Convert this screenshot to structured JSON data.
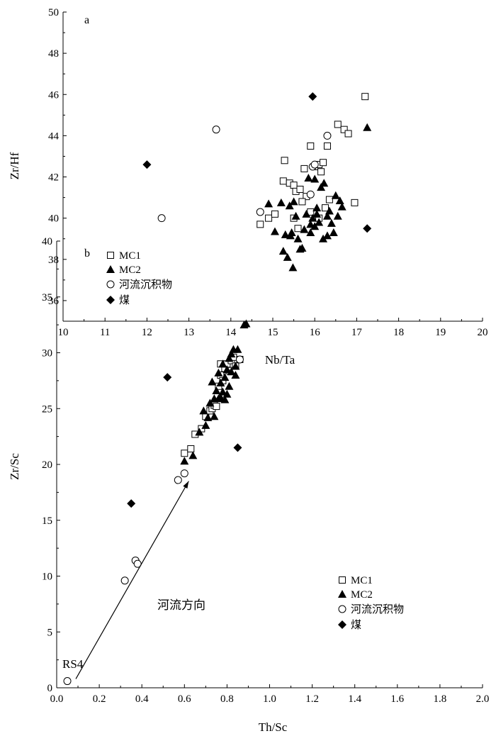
{
  "chart_data": [
    {
      "type": "scatter",
      "panel_label": "a",
      "xlabel": "Nb/Ta",
      "ylabel": "Zr/Hf",
      "xlim": [
        10,
        20
      ],
      "ylim": [
        35,
        50
      ],
      "x_ticks": [
        10,
        11,
        12,
        13,
        14,
        15,
        16,
        17,
        18,
        19,
        20
      ],
      "y_ticks": [
        36,
        38,
        40,
        42,
        44,
        46,
        48,
        50
      ],
      "x_tick_labels": [
        "10",
        "11",
        "12",
        "13",
        "14",
        "15",
        "16",
        "17",
        "18",
        "19",
        "20"
      ],
      "y_tick_labels": [
        "36",
        "38",
        "40",
        "42",
        "44",
        "46",
        "48",
        "50"
      ],
      "legend_position": "bottom-left",
      "series": [
        {
          "name": "MC1",
          "marker": "square-open",
          "points": [
            [
              14.7,
              39.7
            ],
            [
              14.9,
              40.0
            ],
            [
              15.05,
              40.2
            ],
            [
              15.25,
              41.8
            ],
            [
              15.28,
              42.8
            ],
            [
              15.4,
              41.7
            ],
            [
              15.5,
              41.6
            ],
            [
              15.55,
              41.3
            ],
            [
              15.65,
              41.4
            ],
            [
              15.75,
              42.4
            ],
            [
              15.8,
              41.05
            ],
            [
              15.9,
              43.5
            ],
            [
              16.0,
              42.5
            ],
            [
              16.1,
              42.6
            ],
            [
              16.15,
              42.25
            ],
            [
              16.2,
              42.7
            ],
            [
              16.3,
              43.5
            ],
            [
              16.35,
              40.9
            ],
            [
              16.55,
              44.55
            ],
            [
              16.7,
              44.3
            ],
            [
              16.8,
              44.1
            ],
            [
              16.95,
              40.75
            ],
            [
              17.2,
              45.9
            ],
            [
              15.5,
              40.0
            ],
            [
              15.6,
              39.5
            ],
            [
              15.9,
              40.3
            ],
            [
              16.1,
              40.0
            ],
            [
              16.25,
              40.5
            ],
            [
              15.7,
              40.8
            ]
          ]
        },
        {
          "name": "MC2",
          "marker": "triangle-filled",
          "points": [
            [
              14.9,
              40.7
            ],
            [
              15.05,
              39.35
            ],
            [
              15.2,
              40.75
            ],
            [
              15.25,
              38.4
            ],
            [
              15.3,
              39.2
            ],
            [
              15.35,
              38.1
            ],
            [
              15.4,
              40.6
            ],
            [
              15.42,
              39.15
            ],
            [
              15.45,
              39.3
            ],
            [
              15.5,
              40.8
            ],
            [
              15.48,
              37.6
            ],
            [
              15.55,
              40.1
            ],
            [
              15.6,
              39.0
            ],
            [
              15.65,
              38.5
            ],
            [
              15.7,
              38.55
            ],
            [
              15.75,
              39.45
            ],
            [
              15.8,
              40.2
            ],
            [
              15.85,
              41.95
            ],
            [
              15.9,
              39.7
            ],
            [
              15.95,
              40.0
            ],
            [
              16.0,
              41.9
            ],
            [
              16.0,
              39.6
            ],
            [
              16.05,
              40.5
            ],
            [
              16.1,
              39.8
            ],
            [
              16.15,
              41.5
            ],
            [
              16.2,
              39.0
            ],
            [
              16.22,
              41.7
            ],
            [
              16.3,
              39.15
            ],
            [
              16.35,
              40.35
            ],
            [
              16.4,
              39.75
            ],
            [
              16.45,
              39.3
            ],
            [
              16.5,
              41.1
            ],
            [
              16.55,
              40.1
            ],
            [
              16.6,
              40.85
            ],
            [
              16.65,
              40.55
            ],
            [
              17.25,
              44.4
            ],
            [
              15.9,
              39.3
            ],
            [
              16.05,
              40.2
            ],
            [
              16.3,
              40.1
            ]
          ]
        },
        {
          "name": "河流沉积物",
          "marker": "circle-open",
          "points": [
            [
              12.35,
              40.0
            ],
            [
              13.65,
              44.3
            ],
            [
              14.7,
              40.3
            ],
            [
              15.9,
              41.15
            ],
            [
              15.95,
              42.5
            ],
            [
              16.0,
              42.6
            ],
            [
              16.3,
              44.0
            ]
          ]
        },
        {
          "name": "煤",
          "marker": "diamond-filled",
          "points": [
            [
              12.0,
              42.6
            ],
            [
              15.95,
              45.9
            ],
            [
              17.25,
              39.5
            ]
          ]
        }
      ]
    },
    {
      "type": "scatter",
      "panel_label": "b",
      "xlabel": "Th/Sc",
      "ylabel": "Zr/Sc",
      "xlim": [
        0.0,
        2.0
      ],
      "ylim": [
        0,
        40
      ],
      "x_ticks": [
        0.0,
        0.2,
        0.4,
        0.6,
        0.8,
        1.0,
        1.2,
        1.4,
        1.6,
        1.8,
        2.0
      ],
      "y_ticks": [
        0,
        5,
        10,
        15,
        20,
        25,
        30,
        35,
        40
      ],
      "x_tick_labels": [
        "0.0",
        "0.2",
        "0.4",
        "0.6",
        "0.8",
        "1.0",
        "1.2",
        "1.4",
        "1.6",
        "1.8",
        "2.0"
      ],
      "y_tick_labels": [
        "0",
        "5",
        "10",
        "15",
        "20",
        "25",
        "30",
        "35",
        "40"
      ],
      "legend_position": "right",
      "annotations": {
        "rs4_label": "RS4",
        "arrow_label": "河流方向",
        "arrow": {
          "from": [
            0.09,
            0.8
          ],
          "to": [
            0.62,
            18.5
          ]
        }
      },
      "series": [
        {
          "name": "MC1",
          "marker": "square-open",
          "points": [
            [
              0.6,
              21.0
            ],
            [
              0.63,
              21.4
            ],
            [
              0.65,
              22.7
            ],
            [
              0.68,
              23.2
            ],
            [
              0.7,
              24.3
            ],
            [
              0.72,
              24.8
            ],
            [
              0.73,
              25.0
            ],
            [
              0.74,
              25.3
            ],
            [
              0.75,
              25.2
            ],
            [
              0.76,
              27.0
            ],
            [
              0.77,
              28.0
            ],
            [
              0.78,
              27.5
            ],
            [
              0.79,
              28.6
            ],
            [
              0.8,
              29.0
            ],
            [
              0.81,
              28.4
            ],
            [
              0.82,
              29.3
            ],
            [
              0.83,
              29.6
            ],
            [
              0.84,
              28.8
            ],
            [
              0.86,
              29.4
            ],
            [
              0.77,
              29.0
            ]
          ]
        },
        {
          "name": "MC2",
          "marker": "triangle-filled",
          "points": [
            [
              0.6,
              20.3
            ],
            [
              0.64,
              20.8
            ],
            [
              0.67,
              22.9
            ],
            [
              0.69,
              24.8
            ],
            [
              0.7,
              23.5
            ],
            [
              0.71,
              24.2
            ],
            [
              0.72,
              25.5
            ],
            [
              0.73,
              27.4
            ],
            [
              0.74,
              25.9
            ],
            [
              0.75,
              26.6
            ],
            [
              0.76,
              28.2
            ],
            [
              0.76,
              25.9
            ],
            [
              0.77,
              27.3
            ],
            [
              0.78,
              26.5
            ],
            [
              0.78,
              29.0
            ],
            [
              0.79,
              27.8
            ],
            [
              0.79,
              25.8
            ],
            [
              0.8,
              28.5
            ],
            [
              0.8,
              26.3
            ],
            [
              0.81,
              29.5
            ],
            [
              0.81,
              27.0
            ],
            [
              0.82,
              28.3
            ],
            [
              0.82,
              29.9
            ],
            [
              0.83,
              30.3
            ],
            [
              0.84,
              28.0
            ],
            [
              0.84,
              28.8
            ],
            [
              0.85,
              30.3
            ],
            [
              0.88,
              32.5
            ],
            [
              0.89,
              32.6
            ],
            [
              0.74,
              24.3
            ],
            [
              0.77,
              26.0
            ]
          ]
        },
        {
          "name": "河流沉积物",
          "marker": "circle-open",
          "points": [
            [
              0.05,
              0.6
            ],
            [
              0.32,
              9.6
            ],
            [
              0.37,
              11.4
            ],
            [
              0.38,
              11.1
            ],
            [
              0.57,
              18.6
            ],
            [
              0.6,
              19.2
            ],
            [
              0.86,
              29.4
            ]
          ]
        },
        {
          "name": "煤",
          "marker": "diamond-filled",
          "points": [
            [
              0.35,
              16.5
            ],
            [
              0.52,
              27.8
            ],
            [
              0.85,
              21.5
            ]
          ]
        }
      ]
    }
  ]
}
